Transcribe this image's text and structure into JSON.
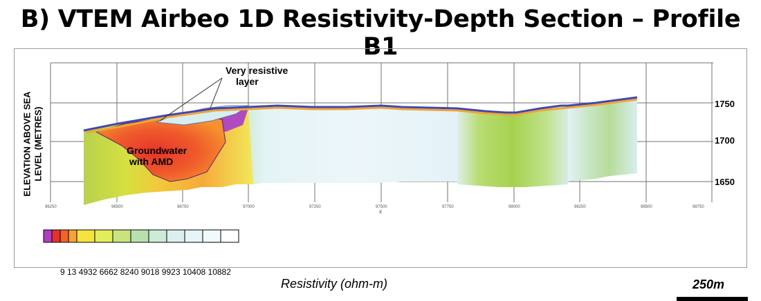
{
  "title": "B) VTEM Airbeo 1D Resistivity-Depth Section – Profile B1",
  "y_axis": {
    "title_line1": "ELEVATION ABOVE SEA",
    "title_line2": "LEVEL (METRES)",
    "ticks": [
      {
        "label": "1750",
        "value": 1750
      },
      {
        "label": "1700",
        "value": 1700
      },
      {
        "label": "1650",
        "value": 1650
      }
    ]
  },
  "x_axis": {
    "label": "x",
    "ticks": [
      "96250",
      "96500",
      "96750",
      "97000",
      "97250",
      "97500",
      "97750",
      "98000",
      "98250",
      "98500",
      "98750"
    ]
  },
  "annotations": {
    "resistive_line1": "Very resistive",
    "resistive_line2": "layer",
    "groundwater_line1": "Groundwater",
    "groundwater_line2": "with AMD"
  },
  "legend": {
    "title": "Resistivity (ohm-m)",
    "values": "9  13  4932  6662  8240  9018  9923  10408  10882",
    "swatches": [
      "#b13cc4",
      "#e2342a",
      "#f0642a",
      "#f6a23a",
      "#f6e23c",
      "#e1ee5a",
      "#c9e47e",
      "#b7e0ae",
      "#cdebd8",
      "#dcefef",
      "#e6f4fa",
      "#f1f9fd",
      "#ffffff"
    ]
  },
  "scale_bar": {
    "label": "250m"
  },
  "colors": {
    "grid": "#707070",
    "surface": "#4048b0"
  }
}
